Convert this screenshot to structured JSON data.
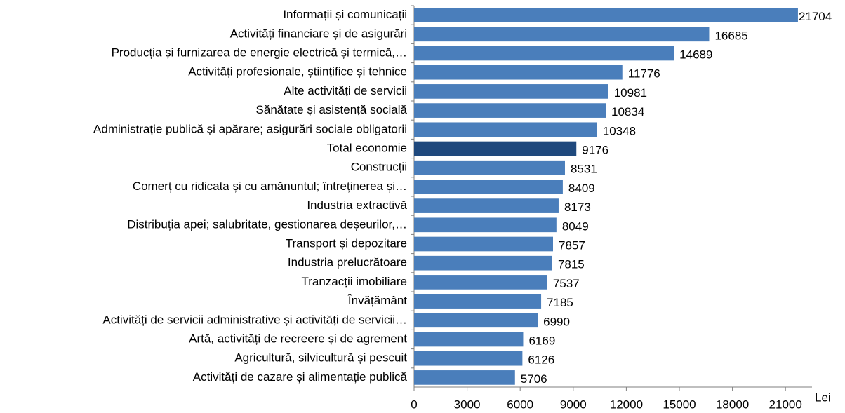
{
  "chart_data": {
    "type": "barh",
    "categories": [
      "Informații și comunicații",
      "Activități financiare și de asigurări",
      "Producția și furnizarea de energie electrică și termică,…",
      "Activități profesionale, științifice și tehnice",
      "Alte activități de servicii",
      "Sănătate și asistență socială",
      "Administrație publică și apărare; asigurări sociale obligatorii",
      "Total economie",
      "Construcții",
      "Comerț cu ridicata și cu amănuntul; întreținerea și…",
      "Industria extractivă",
      "Distribuția apei; salubritate, gestionarea deșeurilor,…",
      "Transport și depozitare",
      "Industria prelucrătoare",
      "Tranzacții imobiliare",
      "Învățământ",
      "Activități de servicii administrative și activități de servicii…",
      "Artă, activități de recreere și de agrement",
      "Agricultură, silvicultură și pescuit",
      "Activități de cazare și alimentație publică"
    ],
    "values": [
      21704,
      16685,
      14689,
      11776,
      10981,
      10834,
      10348,
      9176,
      8531,
      8409,
      8173,
      8049,
      7857,
      7815,
      7537,
      7185,
      6990,
      6169,
      6126,
      5706
    ],
    "colors": [
      "#4a7ebb",
      "#4a7ebb",
      "#4a7ebb",
      "#4a7ebb",
      "#4a7ebb",
      "#4a7ebb",
      "#4a7ebb",
      "#1f497d",
      "#4a7ebb",
      "#4a7ebb",
      "#4a7ebb",
      "#4a7ebb",
      "#4a7ebb",
      "#4a7ebb",
      "#4a7ebb",
      "#4a7ebb",
      "#4a7ebb",
      "#4a7ebb",
      "#4a7ebb",
      "#4a7ebb"
    ],
    "x_label": "Lei",
    "xlim": [
      0,
      22500
    ],
    "xticks": [
      0,
      3000,
      6000,
      9000,
      12000,
      15000,
      18000,
      21000
    ],
    "grid": false
  }
}
